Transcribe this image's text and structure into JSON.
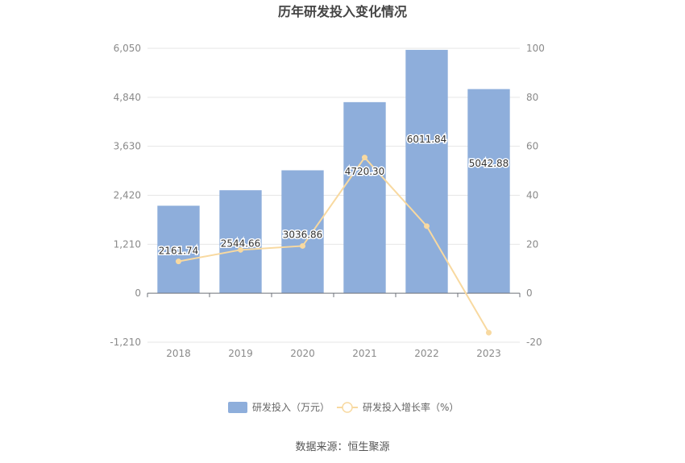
{
  "chart_data": {
    "type": "bar",
    "title": "历年研发投入变化情况",
    "categories": [
      "2018",
      "2019",
      "2020",
      "2021",
      "2022",
      "2023"
    ],
    "series": [
      {
        "name": "研发投入（万元）",
        "type": "bar",
        "axis": "left",
        "color": "#8eaedb",
        "values": [
          2161.74,
          2544.66,
          3036.86,
          4720.3,
          6011.84,
          5042.88
        ],
        "labels": [
          "2161.74",
          "2544.66",
          "3036.86",
          "4720.30",
          "6011.84",
          "5042.88"
        ]
      },
      {
        "name": "研发投入增长率（%）",
        "type": "line",
        "axis": "right",
        "color": "#f8d9a0",
        "values": [
          13.0,
          17.7,
          19.3,
          55.4,
          27.4,
          -16.1
        ]
      }
    ],
    "y_left": {
      "ylim": [
        -1210,
        6050
      ],
      "ticks": [
        6050,
        4840,
        3630,
        2420,
        1210,
        0,
        -1210
      ],
      "tick_labels": [
        "6,050",
        "4,840",
        "3,630",
        "2,420",
        "1,210",
        "0",
        "-1,210"
      ]
    },
    "y_right": {
      "ylim": [
        -20,
        100
      ],
      "ticks": [
        100,
        80,
        60,
        40,
        20,
        0,
        -20
      ],
      "tick_labels": [
        "100",
        "80",
        "60",
        "40",
        "20",
        "0",
        "-20"
      ]
    },
    "grid": true,
    "legend_position": "bottom",
    "source": "数据来源：恒生聚源"
  }
}
